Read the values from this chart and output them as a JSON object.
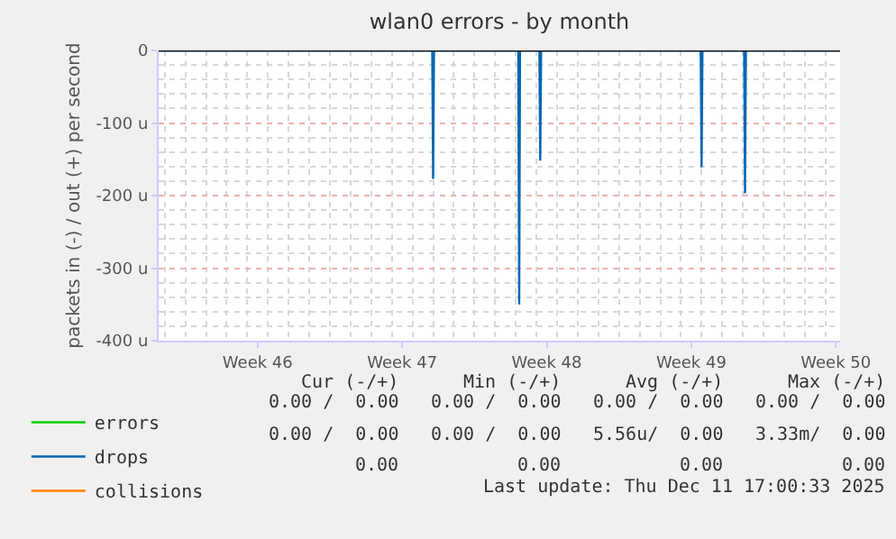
{
  "chart_data": {
    "type": "line",
    "title": "wlan0 errors - by month",
    "ylabel": "packets in (-) / out (+) per second",
    "xlim": [
      "2025-11-08T17:00",
      "2025-12-11T17:00"
    ],
    "xticks": [
      {
        "value": "2025-11-13T12:00",
        "label": "Week 46"
      },
      {
        "value": "2025-11-20T12:00",
        "label": "Week 47"
      },
      {
        "value": "2025-11-27T12:00",
        "label": "Week 48"
      },
      {
        "value": "2025-12-04T12:00",
        "label": "Week 49"
      },
      {
        "value": "2025-12-11T12:00",
        "label": "Week 50"
      }
    ],
    "ylim": [
      -400,
      0
    ],
    "yticks": [
      {
        "value": -400,
        "label": "-400 u"
      },
      {
        "value": -300,
        "label": "-300 u"
      },
      {
        "value": -200,
        "label": "-200 u"
      },
      {
        "value": -100,
        "label": "-100 u"
      },
      0
    ],
    "series": [
      {
        "name": "errors",
        "color": "#00cc00"
      },
      {
        "name": "drops",
        "color": "#0066b3",
        "x": [
          "2025-11-08T17:00",
          "2025-11-21T23:00",
          "2025-11-22T00:00",
          "2025-11-22T01:00",
          "2025-11-26T03:00",
          "2025-11-26T04:00",
          "2025-11-26T05:00",
          "2025-11-27T03:30",
          "2025-11-27T04:30",
          "2025-11-27T05:30",
          "2025-12-04T23:00",
          "2025-12-05T00:00",
          "2025-12-05T01:00",
          "2025-12-07T01:30",
          "2025-12-07T02:30",
          "2025-12-07T03:30",
          "2025-12-11T17:00"
        ],
        "values": [
          0,
          0,
          -177,
          0,
          0,
          -350,
          0,
          0,
          -152,
          0,
          0,
          -161,
          0,
          0,
          -197,
          0,
          0
        ]
      },
      {
        "name": "collisions",
        "color": "#ff8000"
      }
    ],
    "ref_lines": [
      {
        "axis": "y",
        "value": 0,
        "color": "#000000"
      }
    ],
    "grid": true,
    "legend": "bottom left",
    "marker": "none",
    "line_style": "solid",
    "annotations": [
      "Cur (-/+)",
      "Min (-/+)",
      "Avg (-/+)",
      "Max (-/+)",
      "0.00 /  0.00",
      "0.00 /  0.00",
      "0.00 /  0.00",
      "0.00 /  0.00",
      "0.00 /  0.00",
      "0.00 /  0.00",
      "5.56u/  0.00",
      "3.33m/  0.00",
      "0.00",
      "0.00",
      "0.00",
      "0.00",
      "Last update: Thu Dec 11 17:00:33 2025"
    ]
  }
}
